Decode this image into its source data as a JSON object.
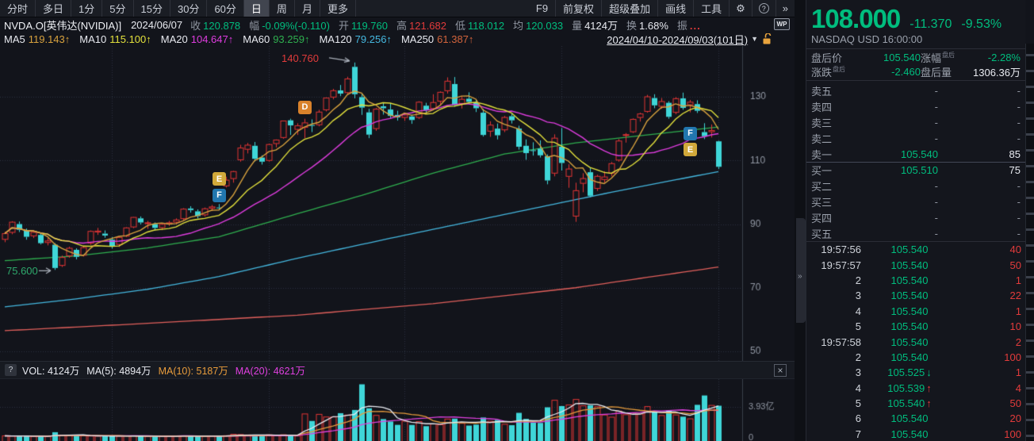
{
  "icons": {
    "gear": "⚙",
    "help": "?",
    "more": "»",
    "collapse": "»",
    "caret": "▼",
    "close": "×",
    "wp": "WP",
    "up_arrow": "↑",
    "down_arrow": "↓",
    "q": "?"
  },
  "toolbar": {
    "tabs": [
      "分时",
      "多日",
      "1分",
      "5分",
      "15分",
      "30分",
      "60分",
      "日",
      "周",
      "月",
      "更多"
    ],
    "active_index": 7,
    "menu": [
      "F9",
      "前复权",
      "超级叠加",
      "画线",
      "工具"
    ]
  },
  "info_bar": {
    "symbol": "NVDA.O[英伟达(NVIDIA)]",
    "date": "2024/06/07",
    "fields": [
      {
        "label": "收",
        "value": "120.878",
        "color": "green"
      },
      {
        "label": "幅",
        "value": "-0.09%(-0.110)",
        "color": "green"
      },
      {
        "label": "开",
        "value": "119.760",
        "color": "green"
      },
      {
        "label": "高",
        "value": "121.682",
        "color": "red"
      },
      {
        "label": "低",
        "value": "118.012",
        "color": "green"
      },
      {
        "label": "均",
        "value": "120.033",
        "color": "green"
      },
      {
        "label": "量",
        "value": "4124万",
        "color": "white"
      },
      {
        "label": "换",
        "value": "1.68%",
        "color": "white"
      },
      {
        "label": "振",
        "value": "...",
        "color": "dots"
      }
    ]
  },
  "ma_bar": {
    "items": [
      {
        "label": "MA5",
        "value": "119.143",
        "arrow": "↑",
        "color": "#d8a23e"
      },
      {
        "label": "MA10",
        "value": "115.100",
        "arrow": "↑",
        "color": "#e3e13c"
      },
      {
        "label": "MA20",
        "value": "104.647",
        "arrow": "↑",
        "color": "#de3cde"
      },
      {
        "label": "MA60",
        "value": "93.259",
        "arrow": "↑",
        "color": "#2faf4f"
      },
      {
        "label": "MA120",
        "value": "79.256",
        "arrow": "↑",
        "color": "#45b8e0"
      },
      {
        "label": "MA250",
        "value": "61.387",
        "arrow": "↑",
        "color": "#d2643c"
      }
    ],
    "range": "2024/04/10-2024/09/03(101日)"
  },
  "volume_header": {
    "items": [
      {
        "label": "VOL:",
        "value": "4124万",
        "color": "#e8eaf0"
      },
      {
        "label": "MA(5):",
        "value": "4894万",
        "color": "#e8eaf0"
      },
      {
        "label": "MA(10):",
        "value": "5187万",
        "color": "#e89c3c"
      },
      {
        "label": "MA(20):",
        "value": "4621万",
        "color": "#e040e0"
      }
    ]
  },
  "quote_panel": {
    "price": "108.000",
    "change": "-11.370",
    "change_pct": "-9.53%",
    "exchange": "NASDAQ  USD  16:00:00",
    "after_hours": {
      "price_label": "盘后价",
      "price": "105.540",
      "pct_label": "涨幅",
      "pct_sup": "盘后",
      "pct": "-2.28%",
      "chg_label": "涨跌",
      "chg_sup": "盘后",
      "chg": "-2.460",
      "vol_label": "盘后量",
      "vol": "1306.36万"
    }
  },
  "order_book": {
    "rows": [
      {
        "label": "卖五",
        "price": "-",
        "qty": "-"
      },
      {
        "label": "卖四",
        "price": "-",
        "qty": "-"
      },
      {
        "label": "卖三",
        "price": "-",
        "qty": "-"
      },
      {
        "label": "卖二",
        "price": "-",
        "qty": "-"
      },
      {
        "label": "卖一",
        "price": "105.540",
        "qty": "85"
      },
      {
        "label": "买一",
        "price": "105.510",
        "qty": "75"
      },
      {
        "label": "买二",
        "price": "-",
        "qty": "-"
      },
      {
        "label": "买三",
        "price": "-",
        "qty": "-"
      },
      {
        "label": "买四",
        "price": "-",
        "qty": "-"
      },
      {
        "label": "买五",
        "price": "-",
        "qty": "-"
      }
    ]
  },
  "ticks": [
    {
      "time": "19:57:56",
      "price": "105.540",
      "arrow": null,
      "qty": "40"
    },
    {
      "time": "19:57:57",
      "price": "105.540",
      "arrow": null,
      "qty": "50"
    },
    {
      "time": "2",
      "price": "105.540",
      "arrow": null,
      "qty": "1"
    },
    {
      "time": "3",
      "price": "105.540",
      "arrow": null,
      "qty": "22"
    },
    {
      "time": "4",
      "price": "105.540",
      "arrow": null,
      "qty": "1"
    },
    {
      "time": "5",
      "price": "105.540",
      "arrow": null,
      "qty": "10"
    },
    {
      "time": "19:57:58",
      "price": "105.540",
      "arrow": null,
      "qty": "2"
    },
    {
      "time": "2",
      "price": "105.540",
      "arrow": null,
      "qty": "100"
    },
    {
      "time": "3",
      "price": "105.525",
      "arrow": "down",
      "qty": "1"
    },
    {
      "time": "4",
      "price": "105.539",
      "arrow": "up",
      "qty": "4"
    },
    {
      "time": "5",
      "price": "105.540",
      "arrow": "up",
      "qty": "50"
    },
    {
      "time": "6",
      "price": "105.540",
      "arrow": null,
      "qty": "20"
    },
    {
      "time": "7",
      "price": "105.540",
      "arrow": null,
      "qty": "100"
    }
  ],
  "chart_data": {
    "type": "candlestick+volume",
    "title": "NVDA.O daily 2024/04/10 - 2024/09/03 (101 days)",
    "days": 101,
    "price_axis": {
      "ticks": [
        130,
        110,
        90,
        70,
        50
      ],
      "min": 48,
      "max": 145
    },
    "grid_month_indices": [
      15,
      37,
      56,
      78,
      100
    ],
    "volume_axis": {
      "mid_label": "3.93亿",
      "mid_value_wan": 39300,
      "zero_label": "0"
    },
    "high_annotation": {
      "label": "140.760",
      "index": 49,
      "price": 140.76
    },
    "low_annotation": {
      "label": "75.600",
      "index": 7,
      "price": 75.6
    },
    "markers": [
      {
        "letter": "D",
        "index": 42,
        "price": 126.8,
        "bg": "#d9822b"
      },
      {
        "letter": "E",
        "index": 30,
        "price": 104.3,
        "bg": "#d1a83a"
      },
      {
        "letter": "F",
        "index": 30,
        "price": 99.2,
        "bg": "#2176ae"
      },
      {
        "letter": "F",
        "index": 96,
        "price": 118.6,
        "bg": "#2176ae"
      },
      {
        "letter": "E",
        "index": 96,
        "price": 113.5,
        "bg": "#d1a83a"
      }
    ],
    "colors": {
      "up_candle": "#e23535",
      "down_candle": "#3fd6d8",
      "grid": "#2e3340",
      "axis_line": "#3a3f4b",
      "axis_text": "#9298a4",
      "arrow": "#aab0ba"
    },
    "ma_overlays": {
      "ma5": {
        "color": "#d8a23e",
        "window": 5
      },
      "ma10": {
        "color": "#e3e13c",
        "window": 10
      },
      "ma20": {
        "color": "#de3cde",
        "window": 20
      },
      "ma60": {
        "color": "#2faf4f",
        "points": [
          [
            0,
            78.5
          ],
          [
            10,
            80
          ],
          [
            20,
            82.5
          ],
          [
            30,
            86
          ],
          [
            41,
            93.26
          ],
          [
            50,
            99
          ],
          [
            60,
            106
          ],
          [
            70,
            112
          ],
          [
            80,
            115.5
          ],
          [
            90,
            118
          ],
          [
            100,
            120.5
          ]
        ]
      },
      "ma120": {
        "color": "#45b8e0",
        "points": [
          [
            0,
            64
          ],
          [
            10,
            66.5
          ],
          [
            20,
            69.5
          ],
          [
            30,
            73.5
          ],
          [
            41,
            79.26
          ],
          [
            55,
            86
          ],
          [
            70,
            93
          ],
          [
            85,
            100
          ],
          [
            100,
            106.5
          ]
        ]
      },
      "ma250": {
        "color": "#e2605c",
        "points": [
          [
            0,
            56.5
          ],
          [
            20,
            58.8
          ],
          [
            41,
            61.39
          ],
          [
            60,
            65
          ],
          [
            80,
            70
          ],
          [
            100,
            76.5
          ]
        ]
      }
    },
    "vol_ma": {
      "ma5": "#e8eaf0",
      "ma10": "#e89c3c",
      "ma20": "#e040e0"
    },
    "candles": {
      "o": [
        85.2,
        87.4,
        90.0,
        88.0,
        86.3,
        86.6,
        84.2,
        83.5,
        77.0,
        80.0,
        81.9,
        80.2,
        84.0,
        87.5,
        87.0,
        85.1,
        83.6,
        86.2,
        89.1,
        91.8,
        90.2,
        90.0,
        88.9,
        90.1,
        90.6,
        91.7,
        94.9,
        94.0,
        92.9,
        95.0,
        95.2,
        102.0,
        104.3,
        110.2,
        113.5,
        114.6,
        110.9,
        110.0,
        115.3,
        117.2,
        122.6,
        119.76,
        120.4,
        121.1,
        121.2,
        125.9,
        129.9,
        132.0,
        131.3,
        139.4,
        129.9,
        125.1,
        120.0,
        127.0,
        126.0,
        124.3,
        123.5,
        123.8,
        123.5,
        127.2,
        126.3,
        128.6,
        131.9,
        134.0,
        127.9,
        129.4,
        128.0,
        125.0,
        119.2,
        120.0,
        119.6,
        123.9,
        120.0,
        114.6,
        113.2,
        113.7,
        111.3,
        106.0,
        114.3,
        105.0,
        92.5,
        102.8,
        106.3,
        101.2,
        104.0,
        106.0,
        110.1,
        118.0,
        119.0,
        123.5,
        125.4,
        129.6,
        127.0,
        128.1,
        125.1,
        129.5,
        127.5,
        127.7,
        118.9,
        119.0,
        116.0
      ],
      "h": [
        87.6,
        90.9,
        90.8,
        88.6,
        88.0,
        87.0,
        85.7,
        84.0,
        80.1,
        82.9,
        82.4,
        83.2,
        88.0,
        88.8,
        88.0,
        85.9,
        86.1,
        89.0,
        92.2,
        92.4,
        91.0,
        90.5,
        90.4,
        91.0,
        91.8,
        95.0,
        95.6,
        94.6,
        95.2,
        96.0,
        96.3,
        104.9,
        106.7,
        114.9,
        115.5,
        115.8,
        111.6,
        115.3,
        116.6,
        122.5,
        123.1,
        121.682,
        123.1,
        122.9,
        125.9,
        129.8,
        132.5,
        133.7,
        136.3,
        140.76,
        131.0,
        126.2,
        126.5,
        128.1,
        128.0,
        125.6,
        124.9,
        124.4,
        128.6,
        128.1,
        130.8,
        131.7,
        136.1,
        136.2,
        130.2,
        131.4,
        129.0,
        126.2,
        122.3,
        121.6,
        124.0,
        124.7,
        120.9,
        116.6,
        115.7,
        116.3,
        111.9,
        118.2,
        120.2,
        108.8,
        103.0,
        106.0,
        107.6,
        105.5,
        106.6,
        109.5,
        116.7,
        118.6,
        123.2,
        125.0,
        130.6,
        130.8,
        129.6,
        128.6,
        129.9,
        131.3,
        129.0,
        128.9,
        121.7,
        121.3,
        116.2
      ],
      "l": [
        84.3,
        86.8,
        87.5,
        85.1,
        85.6,
        83.6,
        83.3,
        75.6,
        76.5,
        79.4,
        78.9,
        79.8,
        83.5,
        86.6,
        85.7,
        82.3,
        82.8,
        85.9,
        88.7,
        89.9,
        88.5,
        88.0,
        88.1,
        89.4,
        90.0,
        91.2,
        93.6,
        91.8,
        92.4,
        94.1,
        94.3,
        101.5,
        103.0,
        109.6,
        112.2,
        109.7,
        108.7,
        109.6,
        114.1,
        116.8,
        118.0,
        118.012,
        117.0,
        118.9,
        120.7,
        125.4,
        129.2,
        130.2,
        130.7,
        129.5,
        124.3,
        117.0,
        119.3,
        124.4,
        123.2,
        122.5,
        122.4,
        121.5,
        123.0,
        124.6,
        125.9,
        127.3,
        131.0,
        126.9,
        126.3,
        127.8,
        125.2,
        117.5,
        117.4,
        116.6,
        118.9,
        121.6,
        113.4,
        110.2,
        111.5,
        110.9,
        102.5,
        105.0,
        106.8,
        101.4,
        90.7,
        100.0,
        98.5,
        100.4,
        103.0,
        105.0,
        109.6,
        115.6,
        118.6,
        122.2,
        125.0,
        126.4,
        126.2,
        123.1,
        124.5,
        125.9,
        125.1,
        124.9,
        116.7,
        117.2,
        107.3
      ],
      "c": [
        87.0,
        90.6,
        88.2,
        86.0,
        87.4,
        84.0,
        84.7,
        76.2,
        79.5,
        82.4,
        79.7,
        82.6,
        87.7,
        87.8,
        86.4,
        83.0,
        85.8,
        88.8,
        92.1,
        90.5,
        90.4,
        88.8,
        89.9,
        90.4,
        91.3,
        94.7,
        94.4,
        92.5,
        94.8,
        95.4,
        95.0,
        103.8,
        106.5,
        113.9,
        114.8,
        110.5,
        109.6,
        115.0,
        116.4,
        122.4,
        121.0,
        120.878,
        121.8,
        120.9,
        125.2,
        129.6,
        131.9,
        131.0,
        135.6,
        130.8,
        126.6,
        118.1,
        126.1,
        126.4,
        124.0,
        123.5,
        124.3,
        122.7,
        128.3,
        125.8,
        128.2,
        131.4,
        134.9,
        127.4,
        129.2,
        128.4,
        126.4,
        118.0,
        121.1,
        117.9,
        123.5,
        122.6,
        114.3,
        112.3,
        113.1,
        111.6,
        103.7,
        117.0,
        109.2,
        107.3,
        100.5,
        104.3,
        98.9,
        105.0,
        104.8,
        109.0,
        116.1,
        118.1,
        122.9,
        124.6,
        130.0,
        127.3,
        128.5,
        123.7,
        129.4,
        126.5,
        128.3,
        125.6,
        117.6,
        119.4,
        108.0
      ]
    },
    "volumes_wan": [
      4300,
      4200,
      4100,
      3900,
      3700,
      3600,
      3500,
      8700,
      5200,
      4800,
      4500,
      4300,
      4100,
      3900,
      3700,
      4200,
      3900,
      4100,
      4400,
      3800,
      3600,
      3400,
      3800,
      3900,
      4000,
      4200,
      3900,
      3700,
      4100,
      4300,
      4150,
      4500,
      6200,
      5900,
      5400,
      5000,
      4896,
      5550,
      4850,
      5650,
      4300,
      4124,
      30800,
      22300,
      30300,
      27100,
      27100,
      31700,
      29400,
      35600,
      66600,
      37600,
      29000,
      24600,
      21600,
      17600,
      22000,
      17500,
      21500,
      16000,
      18600,
      17800,
      24600,
      25100,
      19500,
      16700,
      17900,
      26500,
      22000,
      23500,
      18300,
      17200,
      32100,
      24800,
      20200,
      19900,
      38800,
      47300,
      40300,
      41600,
      48300,
      40600,
      41100,
      39600,
      29500,
      26900,
      34200,
      29900,
      31600,
      30700,
      39700,
      32800,
      28900,
      34900,
      29600,
      27500,
      24900,
      41800,
      53100,
      41100,
      40700
    ]
  }
}
